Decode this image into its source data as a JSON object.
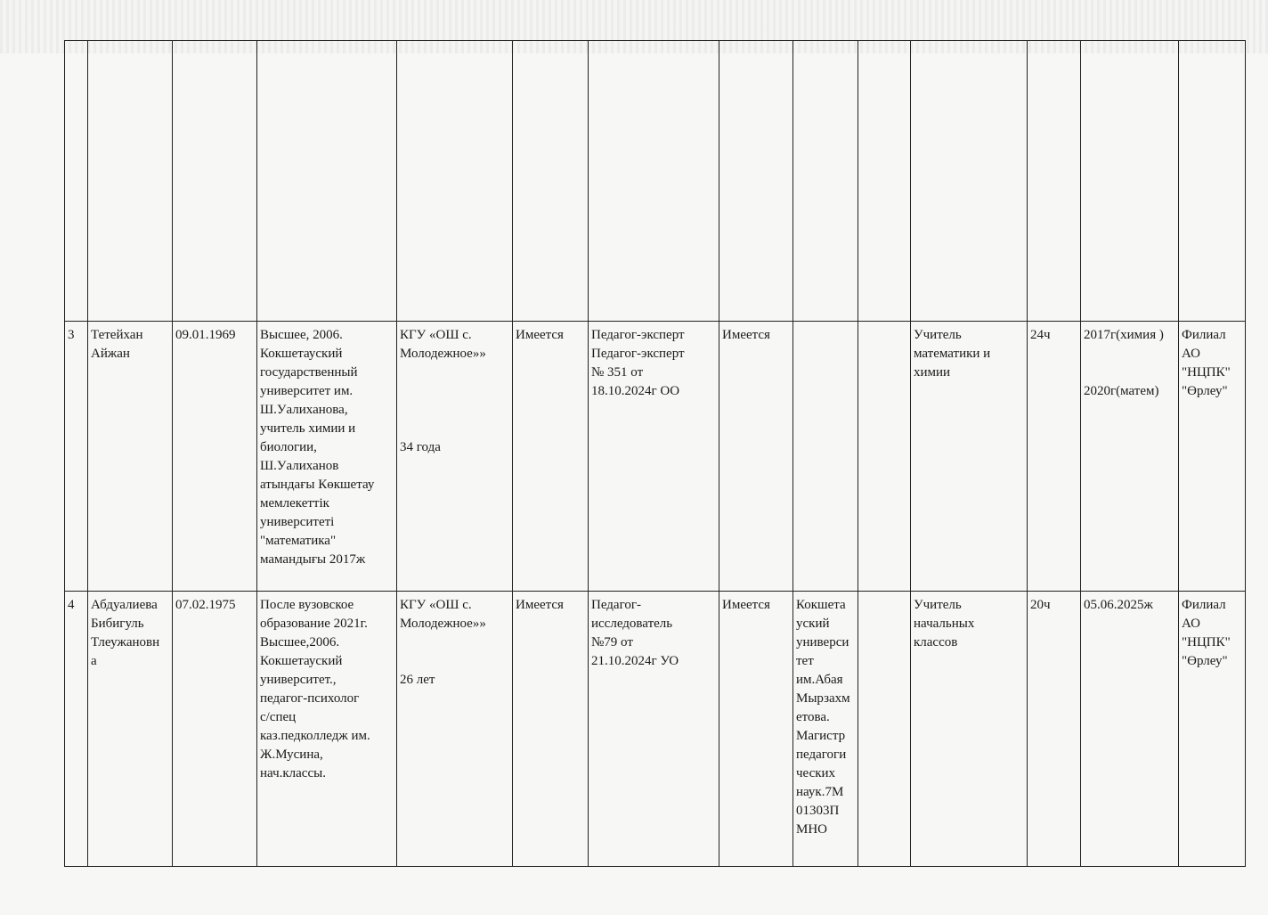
{
  "rows": [
    {
      "cells": [
        "",
        "",
        "",
        "",
        "",
        "",
        "",
        "",
        "",
        "",
        "",
        "",
        "",
        ""
      ]
    },
    {
      "cells": [
        "3",
        "Тетейхан\nАйжан",
        "09.01.1969",
        "Высшее, 2006.\nКокшетауский\nгосударственный\nуниверситет им.\nШ.Уалиханова,\nучитель химии и\nбиологии,\nШ.Уалиханов\nатындағы Көкшетау\nмемлекеттік\nуниверситеті\n\"математика\"\nмамандығы 2017ж",
        "КГУ «ОШ с.\nМолодежное»»\n\n\n\n\n34 года",
        "Имеется",
        "Педагог-эксперт\nПедагог-эксперт\n№ 351 от\n18.10.2024г ОО",
        "Имеется",
        "",
        "",
        "Учитель\nматематики и\nхимии",
        "24ч",
        "2017г(химия )\n\n\n2020г(матем)",
        "Филиал\nАО\n\"НЦПК\"\n\"Өрлеу\""
      ]
    },
    {
      "cells": [
        "4",
        "Абдуалиева\nБибигуль\nТлеужановн\nа",
        "07.02.1975",
        " После вузовское\nобразование 2021г.\nВысшее,2006.\nКокшетауский\nуниверситет.,\nпедагог-психолог\nс/спец\nказ.педколледж им.\nЖ.Мусина,\nнач.классы.",
        "КГУ «ОШ с.\nМолодежное»»\n\n\n26 лет",
        "Имеется",
        "Педагог-\nисследователь\n№79  от\n21.10.2024г УО",
        "Имеется",
        "Кокшета\nуский\nуниверси\nтет\nим.Абая\nМырзахм\nетова.\nМагистр\nпедагоги\nческих\nнаук.7М\n01303П\nМНО",
        "",
        "Учитель\nначальных\nклассов",
        "20ч",
        "05.06.2025ж",
        "Филиал\nАО\n\"НЦПК\"\n\"Өрлеу\""
      ]
    }
  ]
}
